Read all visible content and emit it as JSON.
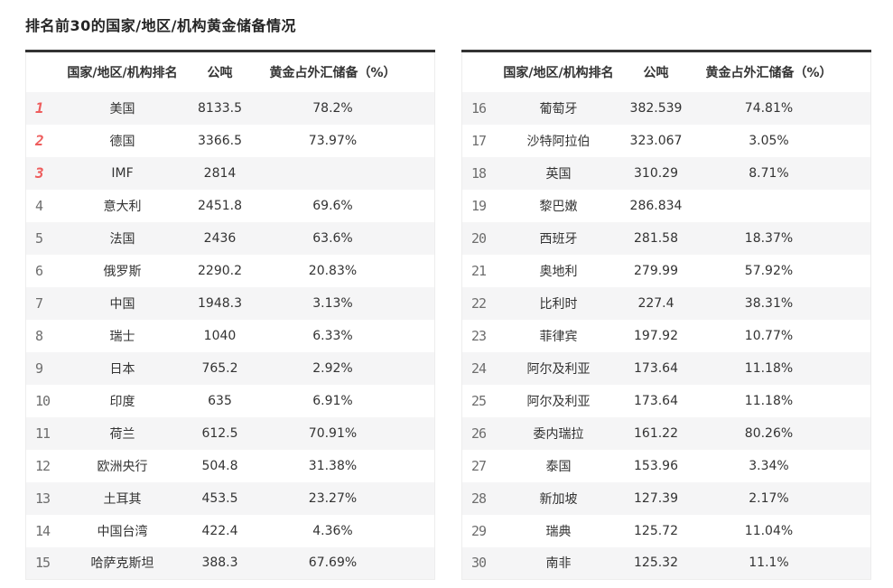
{
  "page": {
    "title": "排名前30的国家/地区/机构黄金储备情况"
  },
  "table_header": {
    "rank_group": "国家/地区/机构排名",
    "tons": "公吨",
    "pct": "黄金占外汇储备（%）"
  },
  "colors": {
    "top_rank_red": "#ee5d5d",
    "rank_gray": "#6e6e6e",
    "table_top_border": "#333333",
    "row_alt_bg": "#f5f5f6",
    "text": "#333333"
  },
  "chart_data": {
    "type": "table",
    "title": "排名前30的国家/地区/机构黄金储备情况",
    "columns": [
      "国家/地区/机构排名",
      "公吨",
      "黄金占外汇储备（%）"
    ],
    "layout": "two side-by-side tables; ranks 1-15 in left table, ranks 16-30 in right table; rank column unlabeled; top 3 ranks highlighted red italic; alternating row shading starting gray",
    "rows_per_table": 15,
    "rows": [
      [
        1,
        "美国",
        "8133.5",
        "78.2%"
      ],
      [
        2,
        "德国",
        "3366.5",
        "73.97%"
      ],
      [
        3,
        "IMF",
        "2814",
        ""
      ],
      [
        4,
        "意大利",
        "2451.8",
        "69.6%"
      ],
      [
        5,
        "法国",
        "2436",
        "63.6%"
      ],
      [
        6,
        "俄罗斯",
        "2290.2",
        "20.83%"
      ],
      [
        7,
        "中国",
        "1948.3",
        "3.13%"
      ],
      [
        8,
        "瑞士",
        "1040",
        "6.33%"
      ],
      [
        9,
        "日本",
        "765.2",
        "2.92%"
      ],
      [
        10,
        "印度",
        "635",
        "6.91%"
      ],
      [
        11,
        "荷兰",
        "612.5",
        "70.91%"
      ],
      [
        12,
        "欧洲央行",
        "504.8",
        "31.38%"
      ],
      [
        13,
        "土耳其",
        "453.5",
        "23.27%"
      ],
      [
        14,
        "中国台湾",
        "422.4",
        "4.36%"
      ],
      [
        15,
        "哈萨克斯坦",
        "388.3",
        "67.69%"
      ],
      [
        16,
        "葡萄牙",
        "382.539",
        "74.81%"
      ],
      [
        17,
        "沙特阿拉伯",
        "323.067",
        "3.05%"
      ],
      [
        18,
        "英国",
        "310.29",
        "8.71%"
      ],
      [
        19,
        "黎巴嫩",
        "286.834",
        ""
      ],
      [
        20,
        "西班牙",
        "281.58",
        "18.37%"
      ],
      [
        21,
        "奥地利",
        "279.99",
        "57.92%"
      ],
      [
        22,
        "比利时",
        "227.4",
        "38.31%"
      ],
      [
        23,
        "菲律宾",
        "197.92",
        "10.77%"
      ],
      [
        24,
        "阿尔及利亚",
        "173.64",
        "11.18%"
      ],
      [
        25,
        "阿尔及利亚",
        "173.64",
        "11.18%"
      ],
      [
        26,
        "委内瑞拉",
        "161.22",
        "80.26%"
      ],
      [
        27,
        "泰国",
        "153.96",
        "3.34%"
      ],
      [
        28,
        "新加坡",
        "127.39",
        "2.17%"
      ],
      [
        29,
        "瑞典",
        "125.72",
        "11.04%"
      ],
      [
        30,
        "南非",
        "125.32",
        "11.1%"
      ]
    ]
  }
}
